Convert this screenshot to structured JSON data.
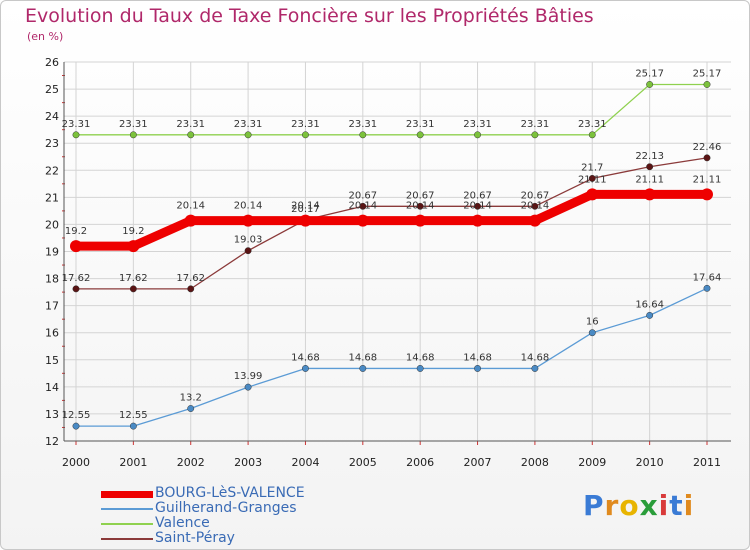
{
  "chart_data": {
    "type": "line",
    "title": "Evolution du Taux de Taxe Foncière sur les Propriétés Bâties",
    "subtitle": "(en %)",
    "x": [
      "2000",
      "2001",
      "2002",
      "2003",
      "2004",
      "2005",
      "2006",
      "2007",
      "2008",
      "2009",
      "2010",
      "2011"
    ],
    "ylim": [
      12,
      26
    ],
    "yticks": [
      "12",
      "13",
      "14",
      "15",
      "16",
      "17",
      "18",
      "19",
      "20",
      "21",
      "22",
      "23",
      "24",
      "25",
      "26"
    ],
    "grid": true,
    "series": [
      {
        "name": "BOURG-LèS-VALENCE",
        "color": "#ee0000",
        "emphasis": true,
        "values": [
          19.2,
          19.2,
          20.14,
          20.14,
          20.14,
          20.14,
          20.14,
          20.14,
          20.14,
          21.11,
          21.11,
          21.11
        ],
        "labels": [
          "19.2",
          "19.2",
          "20.14",
          "20.14",
          "20.14",
          "20.14",
          "20.14",
          "20.14",
          "20.14",
          "21.11",
          "21.11",
          "21.11"
        ]
      },
      {
        "name": "Guilherand-Granges",
        "color": "#5b9bd5",
        "dot": "#4a8ac4",
        "values": [
          12.55,
          12.55,
          13.2,
          13.99,
          14.68,
          14.68,
          14.68,
          14.68,
          14.68,
          16,
          16.64,
          17.64
        ],
        "labels": [
          "12.55",
          "12.55",
          "13.2",
          "13.99",
          "14.68",
          "14.68",
          "14.68",
          "14.68",
          "14.68",
          "16",
          "16.64",
          "17.64"
        ]
      },
      {
        "name": "Valence",
        "color": "#8fd14f",
        "dot": "#7cc23c",
        "values": [
          23.31,
          23.31,
          23.31,
          23.31,
          23.31,
          23.31,
          23.31,
          23.31,
          23.31,
          23.31,
          25.17,
          25.17
        ],
        "labels": [
          "23.31",
          "23.31",
          "23.31",
          "23.31",
          "23.31",
          "23.31",
          "23.31",
          "23.31",
          "23.31",
          "23.31",
          "25.17",
          "25.17"
        ]
      },
      {
        "name": "Saint-Péray",
        "color": "#8b3a3a",
        "dot": "#5a1414",
        "values": [
          17.62,
          17.62,
          17.62,
          19.03,
          20.17,
          20.67,
          20.67,
          20.67,
          20.67,
          21.7,
          22.13,
          22.46
        ],
        "labels": [
          "17.62",
          "17.62",
          "17.62",
          "19.03",
          "20.17",
          "20.67",
          "20.67",
          "20.67",
          "20.67",
          "21.7",
          "22.13",
          "22.46"
        ]
      }
    ]
  },
  "legend": {
    "items": [
      {
        "label": "BOURG-LèS-VALENCE",
        "color": "#ee0000"
      },
      {
        "label": "Guilherand-Granges",
        "color": "#5b9bd5"
      },
      {
        "label": "Valence",
        "color": "#8fd14f"
      },
      {
        "label": "Saint-Péray",
        "color": "#8b3a3a"
      }
    ]
  },
  "logo": {
    "letters": [
      "P",
      "r",
      "o",
      "x",
      "i",
      "t",
      "i"
    ],
    "colors": [
      "#3a7bd5",
      "#e08a1e",
      "#e8b400",
      "#2a9d3a",
      "#d83a3a",
      "#3a7bd5",
      "#e08a1e"
    ]
  }
}
